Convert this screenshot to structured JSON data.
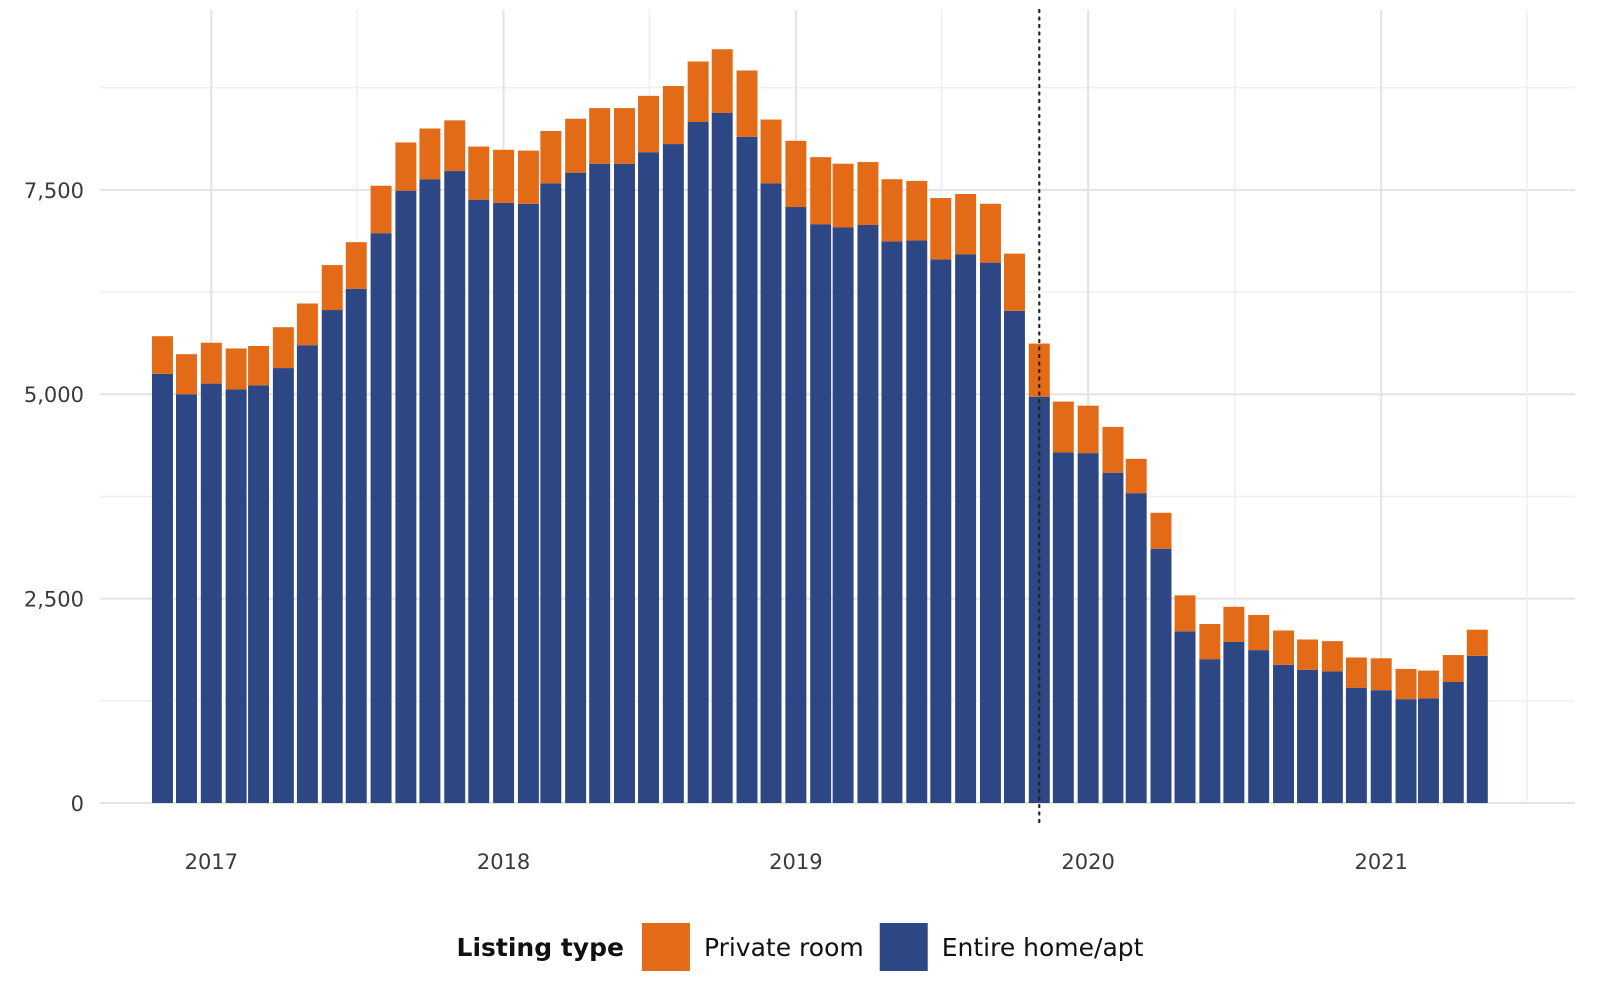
{
  "colors": {
    "private_room": "#e36a17",
    "entire_home": "#2d4684",
    "grid_major": "#e3e3e3",
    "grid_minor": "#eeeeee",
    "marker_line": "#222222"
  },
  "legend": {
    "title": "Listing type",
    "items": [
      {
        "key": "private_room",
        "label": "Private room"
      },
      {
        "key": "entire_home",
        "label": "Entire home/apt"
      }
    ]
  },
  "chart_data": {
    "type": "bar",
    "stacked": true,
    "title": "",
    "xlabel": "",
    "ylabel": "",
    "ylim": [
      0,
      9700
    ],
    "yticks": [
      {
        "value": 0,
        "label": "0"
      },
      {
        "value": 2500,
        "label": "2,500"
      },
      {
        "value": 5000,
        "label": "5,000"
      },
      {
        "value": 7500,
        "label": "7,500"
      }
    ],
    "x_axis": {
      "type": "date",
      "range": [
        "2016-08-15",
        "2021-08-31"
      ],
      "ticks": [
        {
          "date": "2017-01-01",
          "label": "2017"
        },
        {
          "date": "2018-01-01",
          "label": "2018"
        },
        {
          "date": "2019-01-01",
          "label": "2019"
        },
        {
          "date": "2020-01-01",
          "label": "2020"
        },
        {
          "date": "2021-01-01",
          "label": "2021"
        }
      ]
    },
    "grid": true,
    "legend_position": "bottom",
    "reference_line": {
      "date": "2019-11-01",
      "style": "dotted"
    },
    "dates": [
      "2016-11",
      "2016-12",
      "2017-01",
      "2017-02",
      "2017-03",
      "2017-04",
      "2017-05",
      "2017-06",
      "2017-07",
      "2017-08",
      "2017-09",
      "2017-10",
      "2017-11",
      "2017-12",
      "2018-01",
      "2018-02",
      "2018-03",
      "2018-04",
      "2018-05",
      "2018-06",
      "2018-07",
      "2018-08",
      "2018-09",
      "2018-10",
      "2018-11",
      "2018-12",
      "2019-01",
      "2019-02",
      "2019-03",
      "2019-04",
      "2019-05",
      "2019-06",
      "2019-07",
      "2019-08",
      "2019-09",
      "2019-10",
      "2019-11",
      "2019-12",
      "2020-01",
      "2020-02",
      "2020-03",
      "2020-04",
      "2020-05",
      "2020-06",
      "2020-07",
      "2020-08",
      "2020-09",
      "2020-10",
      "2020-11",
      "2020-12",
      "2021-01",
      "2021-02",
      "2021-03",
      "2021-04",
      "2021-05"
    ],
    "series": [
      {
        "name": "Entire home/apt",
        "color_key": "entire_home",
        "values": [
          5250,
          5000,
          5130,
          5060,
          5110,
          5320,
          5600,
          6030,
          6290,
          6970,
          7490,
          7630,
          7730,
          7380,
          7340,
          7330,
          7580,
          7710,
          7820,
          7820,
          7960,
          8060,
          8330,
          8440,
          8150,
          7580,
          7290,
          7080,
          7040,
          7070,
          6870,
          6880,
          6650,
          6710,
          6610,
          6020,
          4970,
          4290,
          4280,
          4040,
          3790,
          3110,
          2100,
          1760,
          1970,
          1870,
          1690,
          1630,
          1610,
          1410,
          1380,
          1270,
          1280,
          1480,
          1800
        ]
      },
      {
        "name": "Private room",
        "color_key": "private_room",
        "values": [
          460,
          490,
          500,
          500,
          480,
          500,
          510,
          550,
          570,
          580,
          590,
          620,
          620,
          650,
          650,
          650,
          640,
          660,
          680,
          680,
          690,
          710,
          740,
          780,
          810,
          780,
          810,
          820,
          780,
          770,
          760,
          730,
          750,
          740,
          720,
          700,
          650,
          620,
          580,
          560,
          420,
          440,
          440,
          430,
          430,
          430,
          420,
          370,
          370,
          370,
          390,
          370,
          340,
          330,
          320
        ]
      }
    ]
  }
}
